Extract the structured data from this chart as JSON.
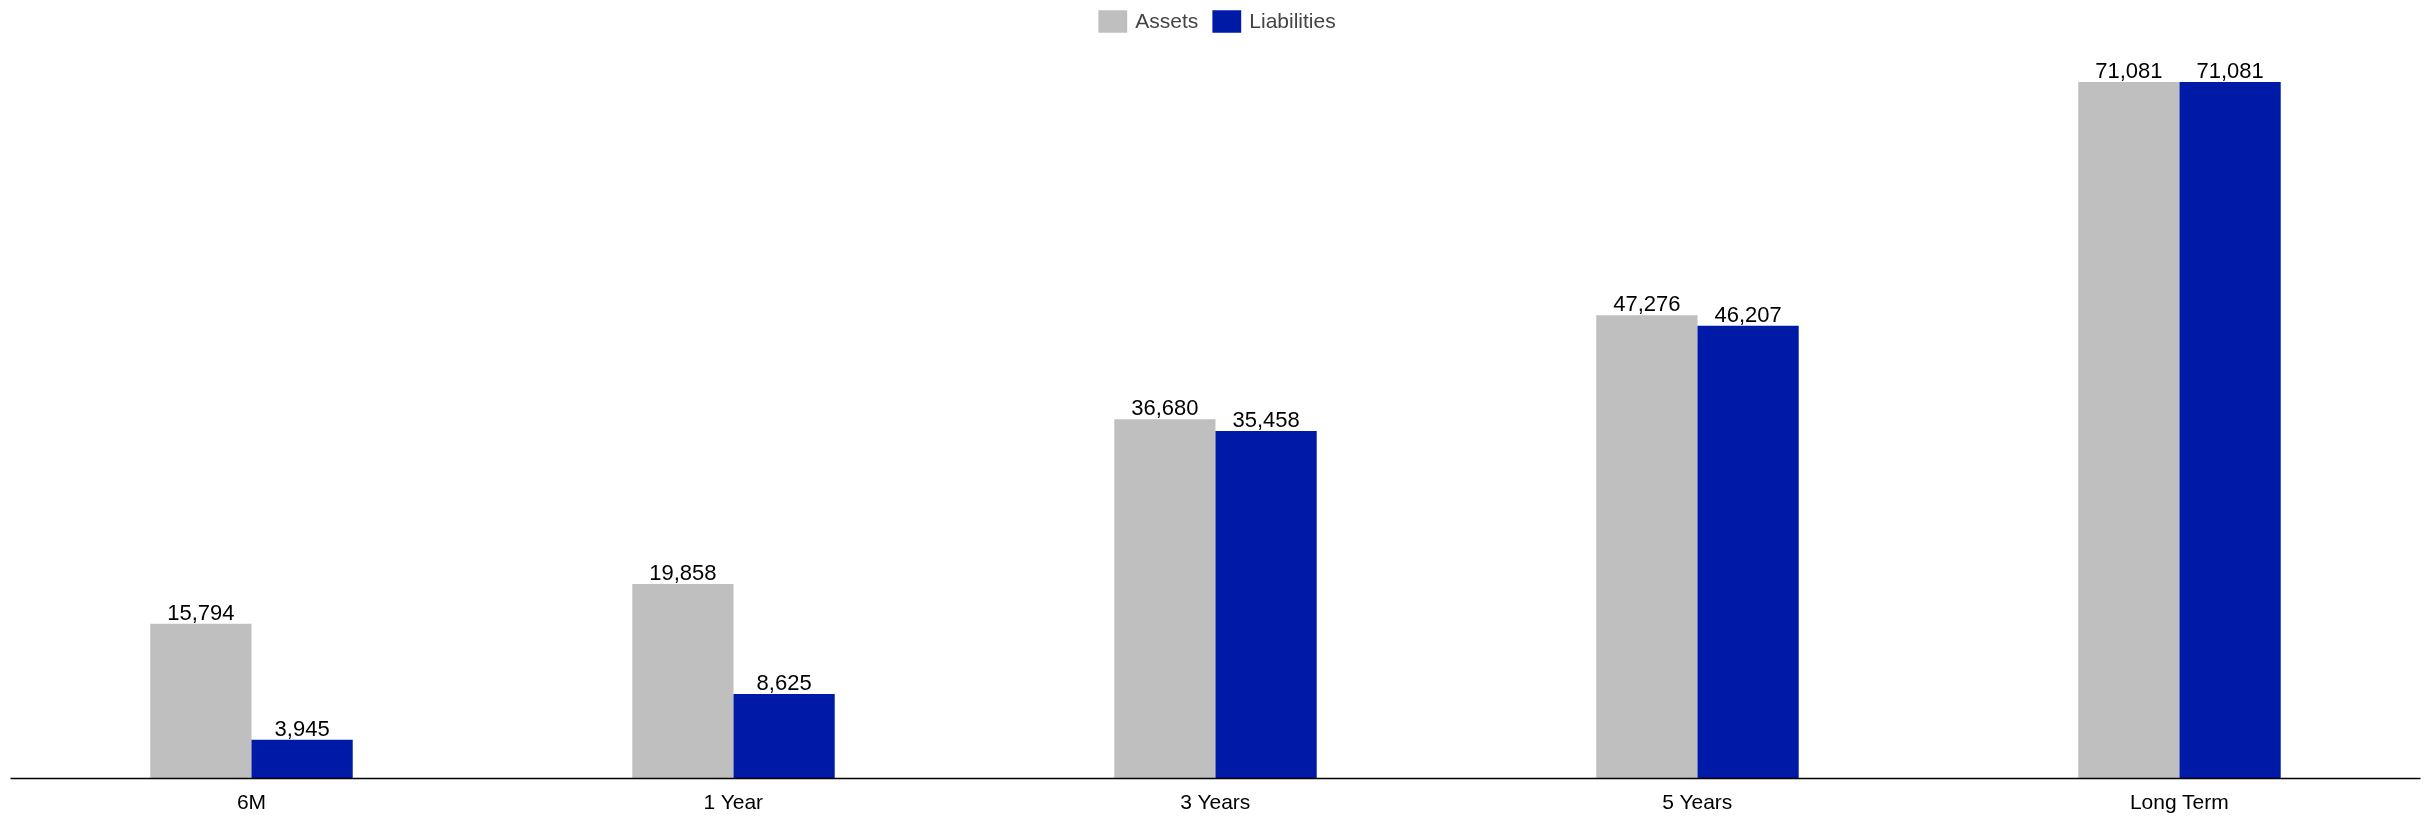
{
  "chart_data": {
    "type": "bar",
    "categories": [
      "6M",
      "1 Year",
      "3 Years",
      "5 Years",
      "Long Term"
    ],
    "series": [
      {
        "name": "Assets",
        "color": "#bfbfbf",
        "values": [
          15794,
          19858,
          36680,
          47276,
          71081
        ],
        "value_labels": [
          "15,794",
          "19,858",
          "36,680",
          "47,276",
          "71,081"
        ]
      },
      {
        "name": "Liabilities",
        "color": "#001aa8",
        "values": [
          3945,
          8625,
          35458,
          46207,
          71081
        ],
        "value_labels": [
          "3,945",
          "8,625",
          "35,458",
          "46,207",
          "71,081"
        ]
      }
    ],
    "legend": "top",
    "grid": false,
    "tick_labels": "x"
  }
}
